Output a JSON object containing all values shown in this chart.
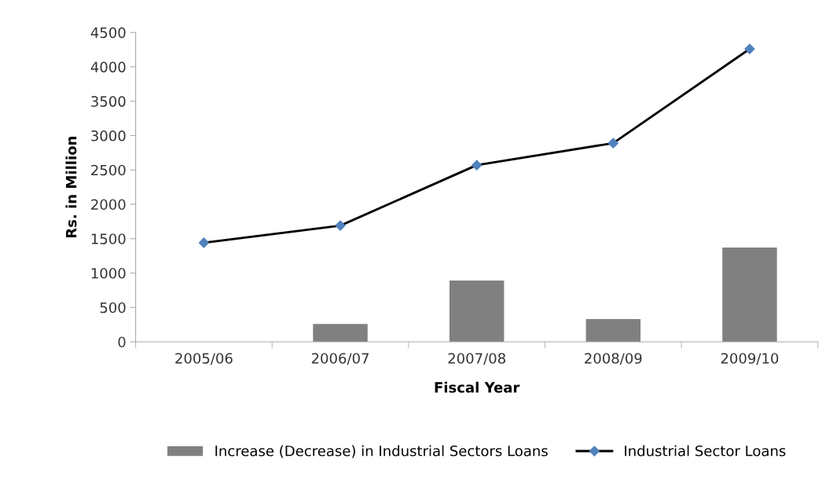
{
  "chart_data": {
    "type": "bar",
    "xlabel": "Fiscal Year",
    "ylabel": "Rs. in Million",
    "categories": [
      "2005/06",
      "2006/07",
      "2007/08",
      "2008/09",
      "2009/10"
    ],
    "series": [
      {
        "name": "Increase (Decrease) in Industrial Sectors Loans",
        "color": "#808080",
        "values": [
          null,
          260,
          890,
          330,
          1370
        ]
      },
      {
        "name": "Industrial Sector Loans",
        "type": "line",
        "color": "#4f81bd",
        "marker": "diamond",
        "values": [
          1440,
          1690,
          2570,
          2890,
          4260
        ]
      }
    ],
    "ylim": [
      0,
      4500
    ],
    "yticks": [
      0,
      500,
      1000,
      1500,
      2000,
      2500,
      3000,
      3500,
      4000,
      4500
    ],
    "grid": false,
    "legend": "bottom"
  }
}
